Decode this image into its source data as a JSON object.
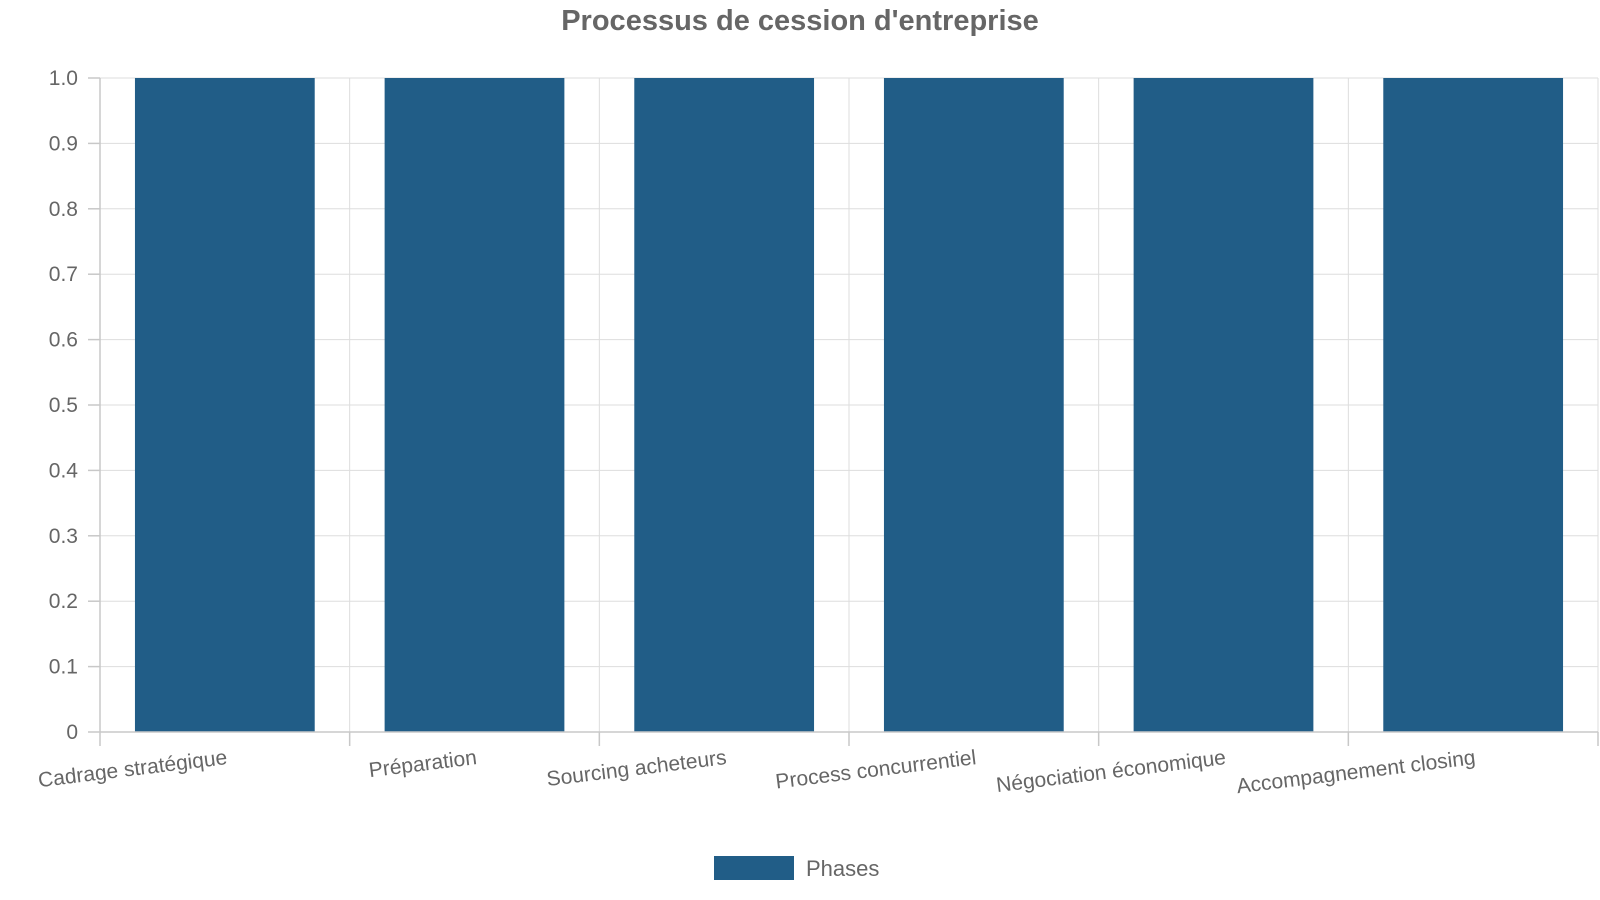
{
  "chart_data": {
    "type": "bar",
    "title": "Processus de cession d'entreprise",
    "categories": [
      "Cadrage stratégique",
      "Préparation",
      "Sourcing acheteurs",
      "Process concurrentiel",
      "Négociation économique",
      "Accompagnement closing"
    ],
    "series": [
      {
        "name": "Phases",
        "values": [
          1,
          1,
          1,
          1,
          1,
          1
        ],
        "color": "#215d87"
      }
    ],
    "ylim": [
      0,
      1
    ],
    "yticks": [
      "0",
      "0.1",
      "0.2",
      "0.3",
      "0.4",
      "0.5",
      "0.6",
      "0.7",
      "0.8",
      "0.9",
      "1.0"
    ],
    "grid": true,
    "legend_position": "bottom"
  }
}
